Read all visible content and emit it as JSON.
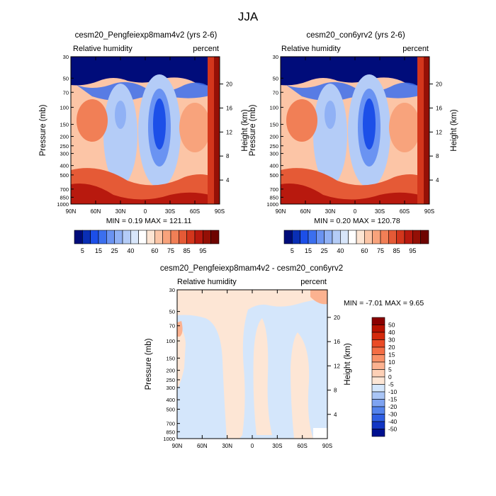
{
  "figure_title": "JJA",
  "chart_data": [
    {
      "type": "heatmap",
      "title": "cesm20_Pengfeiexp8mam4v2 (yrs 2-6)",
      "subtitle_left": "Relative humidity",
      "subtitle_right": "percent",
      "xlabel": "",
      "ylabel": "Pressure (mb)",
      "ylabel_right": "Height (km)",
      "x_ticks": [
        "90N",
        "60N",
        "30N",
        "0",
        "30S",
        "60S",
        "90S"
      ],
      "y_ticks": [
        "30",
        "50",
        "70",
        "100",
        "150",
        "200",
        "250",
        "300",
        "400",
        "500",
        "700",
        "850",
        "1000"
      ],
      "y_right_ticks": [
        "20",
        "16",
        "12",
        "8",
        "4"
      ],
      "stats": "MIN =  0.19  MAX = 121.11",
      "colorbar_labels": [
        "5",
        "15",
        "25",
        "40",
        "60",
        "75",
        "85",
        "95"
      ],
      "colorbar_levels": [
        5,
        10,
        15,
        20,
        25,
        30,
        35,
        40,
        50,
        60,
        65,
        70,
        75,
        80,
        85,
        90,
        95
      ],
      "colors": [
        "#000c7a",
        "#0a2fb5",
        "#1c4fe8",
        "#3b6fef",
        "#6a93f2",
        "#90b1f5",
        "#b4ccf7",
        "#d8e6fa",
        "#ffffff",
        "#fde5d3",
        "#fcc5a6",
        "#f8a37c",
        "#f17f56",
        "#e55a36",
        "#d3361c",
        "#b8190e",
        "#951006",
        "#6e0401"
      ]
    },
    {
      "type": "heatmap",
      "title": "cesm20_con6yrv2 (yrs 2-6)",
      "subtitle_left": "Relative humidity",
      "subtitle_right": "percent",
      "xlabel": "",
      "ylabel": "Pressure (mb)",
      "ylabel_right": "Height (km)",
      "x_ticks": [
        "90N",
        "60N",
        "30N",
        "0",
        "30S",
        "60S",
        "90S"
      ],
      "y_ticks": [
        "30",
        "50",
        "70",
        "100",
        "150",
        "200",
        "250",
        "300",
        "400",
        "500",
        "700",
        "850",
        "1000"
      ],
      "y_right_ticks": [
        "20",
        "16",
        "12",
        "8",
        "4"
      ],
      "stats": "MIN =  0.20  MAX = 120.78",
      "colorbar_labels": [
        "5",
        "15",
        "25",
        "40",
        "60",
        "75",
        "85",
        "95"
      ]
    },
    {
      "type": "heatmap",
      "title": "cesm20_Pengfeiexp8mam4v2 - cesm20_con6yrv2",
      "subtitle_left": "Relative humidity",
      "subtitle_right": "percent",
      "xlabel": "",
      "ylabel": "Pressure (mb)",
      "ylabel_right": "Height (km)",
      "x_ticks": [
        "90N",
        "60N",
        "30N",
        "0",
        "30S",
        "60S",
        "90S"
      ],
      "y_ticks": [
        "30",
        "50",
        "70",
        "100",
        "150",
        "200",
        "250",
        "300",
        "400",
        "500",
        "700",
        "850",
        "1000"
      ],
      "y_right_ticks": [
        "20",
        "16",
        "12",
        "8",
        "4"
      ],
      "stats": "MIN =  -7.01  MAX =   9.65",
      "colorbar_labels": [
        "50",
        "40",
        "30",
        "20",
        "15",
        "10",
        "5",
        "0",
        "-5",
        "-10",
        "-15",
        "-20",
        "-30",
        "-40",
        "-50"
      ],
      "colors": [
        "#8a0000",
        "#b81200",
        "#d42a0c",
        "#ea4b26",
        "#f46e45",
        "#f99168",
        "#fcb290",
        "#fdd0b6",
        "#fde6d5",
        "#d4e6fb",
        "#a9c5f6",
        "#7ea3f1",
        "#5483ec",
        "#2f5fe3",
        "#1236c4",
        "#00108f"
      ]
    }
  ]
}
